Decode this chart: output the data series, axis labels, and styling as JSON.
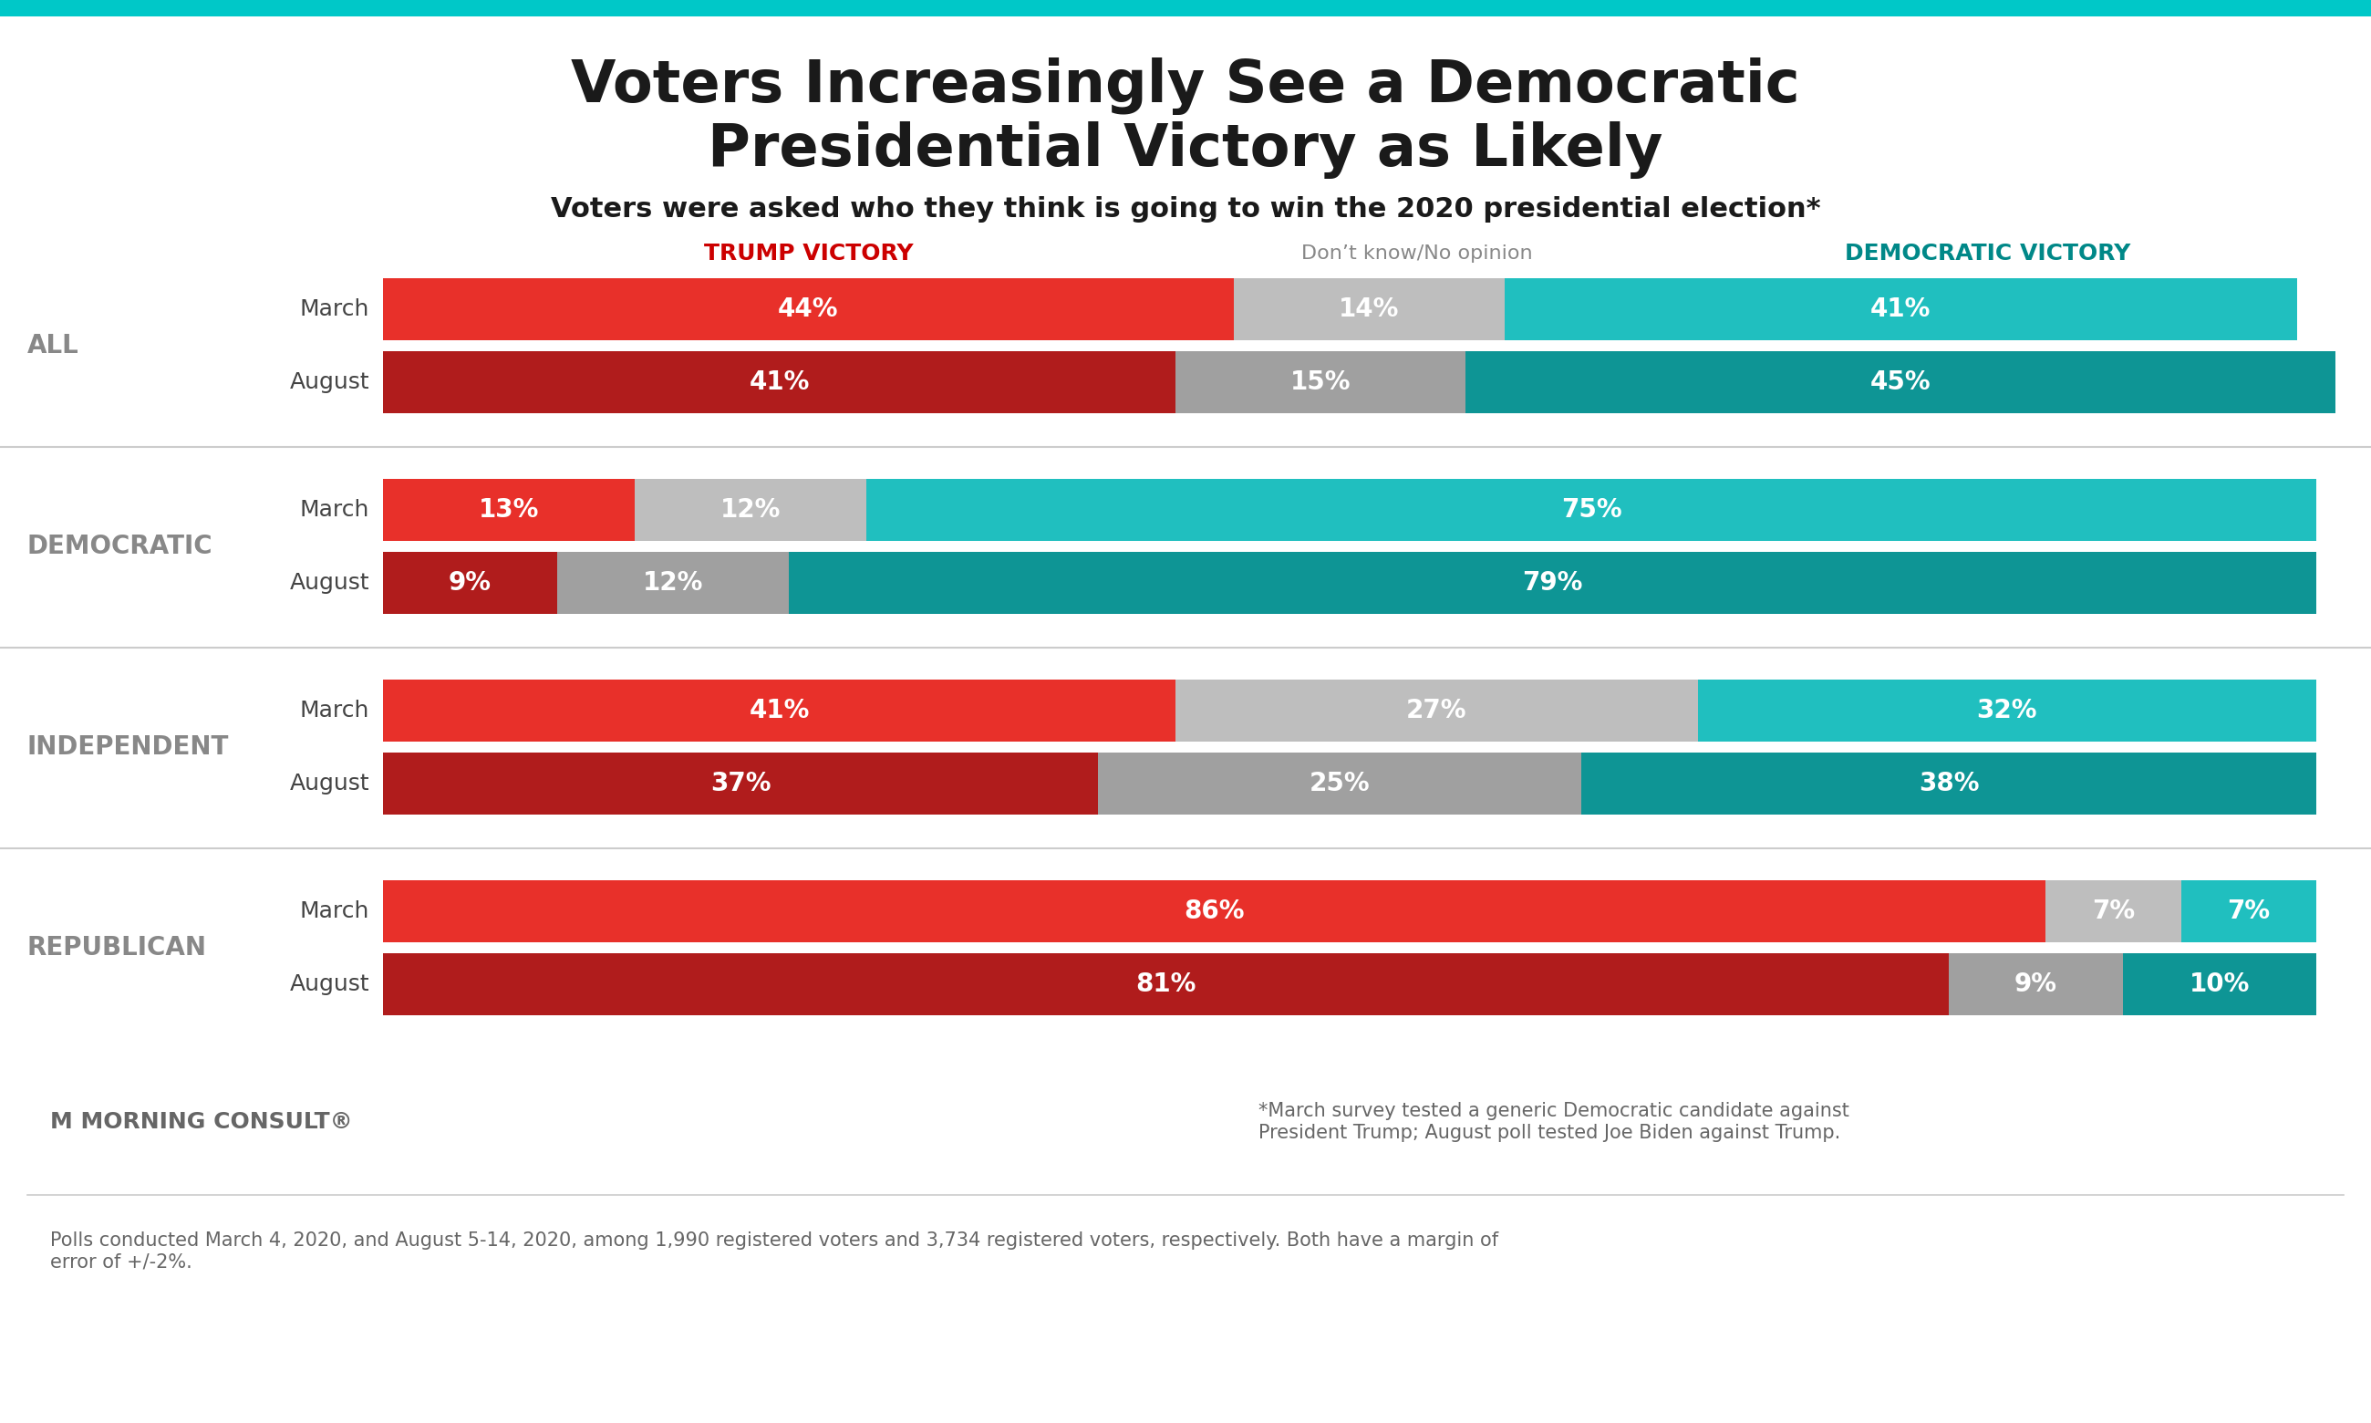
{
  "title_line1": "Voters Increasingly See a Democratic",
  "title_line2": "Presidential Victory as Likely",
  "subtitle": "Voters were asked who they think is going to win the 2020 presidential election*",
  "footnote1": "*March survey tested a generic Democratic candidate against\nPresident Trump; August poll tested Joe Biden against Trump.",
  "footnote2": "Polls conducted March 4, 2020, and August 5-14, 2020, among 1,990 registered voters and 3,734 registered voters, respectively. Both have a margin of\nerror of +/-2%.",
  "header_trump": "TRUMP VICTORY",
  "header_dontknow": "Don’t know/No opinion",
  "header_dem": "DEMOCRATIC VICTORY",
  "groups": [
    {
      "label": "ALL",
      "rows": [
        {
          "period": "March",
          "trump": 44,
          "dontknow": 14,
          "dem": 41
        },
        {
          "period": "August",
          "trump": 41,
          "dontknow": 15,
          "dem": 45
        }
      ]
    },
    {
      "label": "DEMOCRATIC",
      "rows": [
        {
          "period": "March",
          "trump": 13,
          "dontknow": 12,
          "dem": 75
        },
        {
          "period": "August",
          "trump": 9,
          "dontknow": 12,
          "dem": 79
        }
      ]
    },
    {
      "label": "INDEPENDENT",
      "rows": [
        {
          "period": "March",
          "trump": 41,
          "dontknow": 27,
          "dem": 32
        },
        {
          "period": "August",
          "trump": 37,
          "dontknow": 25,
          "dem": 38
        }
      ]
    },
    {
      "label": "REPUBLICAN",
      "rows": [
        {
          "period": "March",
          "trump": 86,
          "dontknow": 7,
          "dem": 7
        },
        {
          "period": "August",
          "trump": 81,
          "dontknow": 9,
          "dem": 10
        }
      ]
    }
  ],
  "color_trump_march": "#E8302A",
  "color_trump_august": "#B01C1C",
  "color_dontknow_march": "#BEBEBE",
  "color_dontknow_august": "#A0A0A0",
  "color_dem_march": "#20BFBF",
  "color_dem_august": "#0E9595",
  "background_color": "#FFFFFF",
  "top_bar_color": "#00C8C8",
  "label_color_group": "#888888",
  "label_color_period": "#444444",
  "title_color": "#1a1a1a",
  "subtitle_color": "#1a1a1a",
  "header_trump_color": "#CC0000",
  "header_dontknow_color": "#888888",
  "header_dem_color": "#008888",
  "divider_color": "#CCCCCC",
  "footer_text_color": "#666666"
}
